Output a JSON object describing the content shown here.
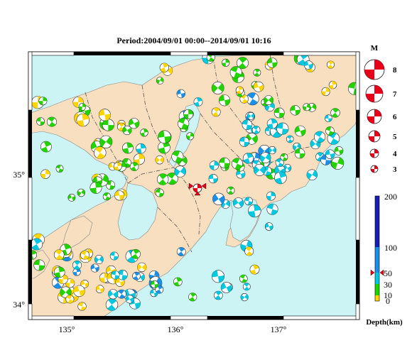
{
  "title": "Period:2004/09/01 00:00--2014/09/01 10:16",
  "axes": {
    "lon_labels": [
      "135°",
      "136°",
      "137°"
    ],
    "lat_labels": [
      "35°",
      "34°"
    ]
  },
  "magnitude_legend": {
    "label": "M",
    "items": [
      "8",
      "7",
      "6",
      "5",
      "4",
      "3"
    ]
  },
  "depth_legend": {
    "label": "Depth(km)",
    "ticks": [
      "200",
      "100",
      "50",
      "30",
      "10",
      "0"
    ],
    "colors": {
      "shallow": "#ffd400",
      "mid1": "#21d400",
      "mid2": "#00c8e0",
      "mid3": "#1a8fe8",
      "deep": "#1520b0"
    }
  },
  "colors": {
    "sea": "#cdf4f4",
    "land": "#f8dfc0",
    "selected": "#e8001a"
  }
}
